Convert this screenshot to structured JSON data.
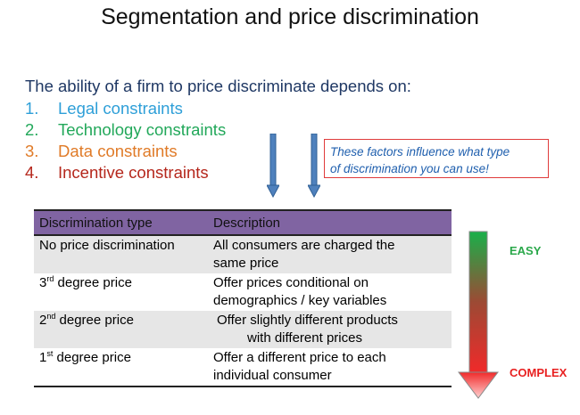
{
  "slide": {
    "title": "Segmentation and price discrimination",
    "intro": "The ability of a firm to price discriminate depends on:",
    "constraints": [
      {
        "number": "1.",
        "label": "Legal constraints",
        "color": "#2e9fd8"
      },
      {
        "number": "2.",
        "label": "Technology constraints",
        "color": "#22a85a"
      },
      {
        "number": "3.",
        "label": "Data constraints",
        "color": "#e07b28"
      },
      {
        "number": "4.",
        "label": "Incentive constraints",
        "color": "#b5271c"
      }
    ],
    "callout": {
      "line1": "These factors influence what type",
      "line2": "of discrimination you can use!"
    }
  },
  "table": {
    "header": {
      "col1": "Discrimination type",
      "col2": "Description"
    },
    "rows": [
      {
        "type": "No price discrimination",
        "ordinal": "",
        "desc1": "All consumers are charged the",
        "desc2": "same price"
      },
      {
        "type": " degree price",
        "ordinal": "3",
        "superscript": "rd",
        "desc1": " Offer prices conditional on",
        "desc2": "demographics / key variables"
      },
      {
        "type": " degree price",
        "ordinal": "2",
        "superscript": "nd",
        "desc1": " Offer slightly different products",
        "desc2": "with different prices"
      },
      {
        "type": " degree price",
        "ordinal": "1",
        "superscript": "st",
        "desc1": "Offer a different price to each",
        "desc2": "individual consumer"
      }
    ]
  },
  "scale": {
    "easy_label": "EASY",
    "complex_label": "COMPLEX",
    "gradient_colors": [
      "#19b04a",
      "#9c4a34",
      "#f02a2a"
    ]
  },
  "colors": {
    "header_purple": "#8064a2",
    "row_shade": "#e6e6e6",
    "arrow_blue": "#4f81bd",
    "callout_border": "#e03b3b",
    "callout_text": "#1f5fae"
  }
}
